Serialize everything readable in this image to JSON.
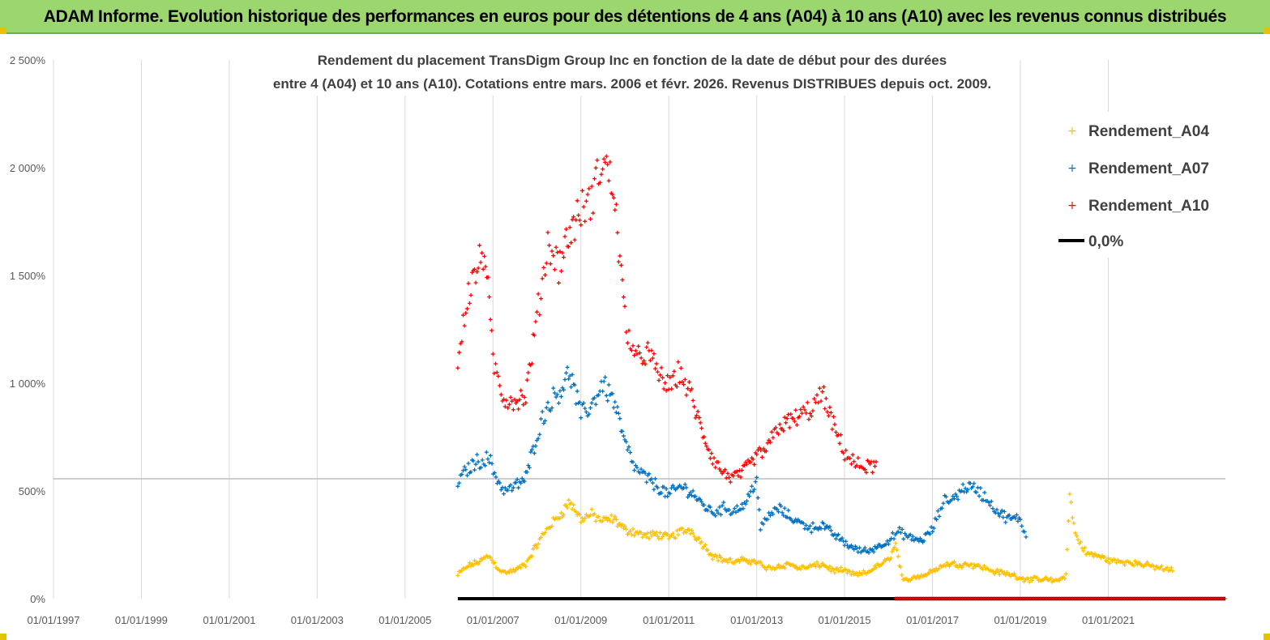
{
  "banner": {
    "title": "ADAM Informe. Evolution historique des performances en euros pour des détentions de 4 ans (A04) à 10 ans (A10) avec les revenus connus distribués"
  },
  "colors": {
    "banner_bg": "#9bd66e",
    "A04": "#ffc000",
    "A07": "#0070c0",
    "A10": "#ff0000",
    "zero_line": "#000000",
    "grid": "#d9d9d9"
  },
  "chart_data": {
    "type": "scatter",
    "title_lines": [
      "Rendement du placement TransDigm Group Inc en fonction de la date de début pour des durées",
      "entre 4 (A04) et 10 ans (A10). Cotations entre mars. 2006 et févr. 2026. Revenus DISTRIBUES depuis oct. 2009."
    ],
    "xlabel": "",
    "ylabel": "",
    "x_ticks": [
      "01/01/1997",
      "01/01/1999",
      "01/01/2001",
      "01/01/2003",
      "01/01/2005",
      "01/01/2007",
      "01/01/2009",
      "01/01/2011",
      "01/01/2013",
      "01/01/2015",
      "01/01/2017",
      "01/01/2019",
      "01/01/2021"
    ],
    "xlim": [
      "1997-01-01",
      "2023-09-01"
    ],
    "y_ticks": [
      "0%",
      "500%",
      "1 000%",
      "1 500%",
      "2 000%",
      "2 500%"
    ],
    "ylim": [
      0,
      2500
    ],
    "grid": "vertical",
    "legend_position": "top-right",
    "legend": [
      "Rendement_A04",
      "Rendement_A07",
      "Rendement_A10",
      "0,0%"
    ],
    "series": [
      {
        "name": "Rendement_A04",
        "points": [
          [
            "2006-03-15",
            110
          ],
          [
            "2006-06-01",
            150
          ],
          [
            "2006-09-01",
            170
          ],
          [
            "2006-12-01",
            200
          ],
          [
            "2007-01-15",
            160
          ],
          [
            "2007-04-01",
            120
          ],
          [
            "2007-07-01",
            130
          ],
          [
            "2007-10-01",
            160
          ],
          [
            "2008-01-01",
            250
          ],
          [
            "2008-04-01",
            330
          ],
          [
            "2008-07-01",
            380
          ],
          [
            "2008-10-01",
            450
          ],
          [
            "2009-01-01",
            370
          ],
          [
            "2009-04-01",
            390
          ],
          [
            "2009-07-01",
            360
          ],
          [
            "2009-10-01",
            370
          ],
          [
            "2010-01-01",
            320
          ],
          [
            "2010-04-01",
            310
          ],
          [
            "2010-07-01",
            290
          ],
          [
            "2010-10-01",
            300
          ],
          [
            "2011-01-01",
            280
          ],
          [
            "2011-04-01",
            310
          ],
          [
            "2011-07-01",
            320
          ],
          [
            "2011-10-01",
            260
          ],
          [
            "2012-01-01",
            200
          ],
          [
            "2012-04-01",
            180
          ],
          [
            "2012-07-01",
            170
          ],
          [
            "2012-10-01",
            180
          ],
          [
            "2013-01-01",
            170
          ],
          [
            "2013-04-01",
            140
          ],
          [
            "2013-07-01",
            150
          ],
          [
            "2013-10-01",
            160
          ],
          [
            "2014-01-01",
            140
          ],
          [
            "2014-04-01",
            150
          ],
          [
            "2014-07-01",
            160
          ],
          [
            "2014-10-01",
            130
          ],
          [
            "2015-01-01",
            130
          ],
          [
            "2015-04-01",
            110
          ],
          [
            "2015-07-01",
            120
          ],
          [
            "2015-10-01",
            150
          ],
          [
            "2016-01-01",
            180
          ],
          [
            "2016-03-01",
            250
          ],
          [
            "2016-05-01",
            80
          ],
          [
            "2016-08-01",
            100
          ],
          [
            "2016-11-01",
            110
          ],
          [
            "2017-02-01",
            140
          ],
          [
            "2017-05-01",
            160
          ],
          [
            "2017-08-01",
            160
          ],
          [
            "2017-11-01",
            160
          ],
          [
            "2018-02-01",
            150
          ],
          [
            "2018-05-01",
            130
          ],
          [
            "2018-08-01",
            120
          ],
          [
            "2018-11-01",
            110
          ],
          [
            "2019-02-01",
            90
          ],
          [
            "2019-05-01",
            90
          ],
          [
            "2019-08-01",
            90
          ],
          [
            "2019-11-01",
            80
          ],
          [
            "2020-01-15",
            110
          ],
          [
            "2020-02-15",
            480
          ],
          [
            "2020-04-01",
            300
          ],
          [
            "2020-07-01",
            210
          ],
          [
            "2020-10-01",
            200
          ],
          [
            "2021-01-01",
            180
          ],
          [
            "2021-04-01",
            170
          ],
          [
            "2021-07-01",
            170
          ],
          [
            "2021-10-01",
            160
          ],
          [
            "2022-01-01",
            150
          ],
          [
            "2022-04-01",
            140
          ],
          [
            "2022-07-01",
            130
          ]
        ]
      },
      {
        "name": "Rendement_A07",
        "points": [
          [
            "2006-03-15",
            540
          ],
          [
            "2006-06-01",
            600
          ],
          [
            "2006-09-01",
            640
          ],
          [
            "2006-12-01",
            650
          ],
          [
            "2007-01-15",
            580
          ],
          [
            "2007-04-01",
            500
          ],
          [
            "2007-07-01",
            520
          ],
          [
            "2007-10-01",
            560
          ],
          [
            "2008-01-01",
            760
          ],
          [
            "2008-04-01",
            900
          ],
          [
            "2008-07-01",
            960
          ],
          [
            "2008-10-01",
            1050
          ],
          [
            "2009-01-01",
            850
          ],
          [
            "2009-04-01",
            900
          ],
          [
            "2009-07-01",
            1000
          ],
          [
            "2009-10-01",
            920
          ],
          [
            "2010-01-01",
            720
          ],
          [
            "2010-04-01",
            600
          ],
          [
            "2010-07-01",
            560
          ],
          [
            "2010-10-01",
            520
          ],
          [
            "2011-01-01",
            480
          ],
          [
            "2011-04-01",
            520
          ],
          [
            "2011-07-01",
            500
          ],
          [
            "2011-10-01",
            440
          ],
          [
            "2012-01-01",
            400
          ],
          [
            "2012-04-01",
            420
          ],
          [
            "2012-07-01",
            410
          ],
          [
            "2012-10-01",
            440
          ],
          [
            "2013-01-01",
            560
          ],
          [
            "2013-02-01",
            320
          ],
          [
            "2013-04-01",
            380
          ],
          [
            "2013-07-01",
            420
          ],
          [
            "2013-10-01",
            380
          ],
          [
            "2014-01-01",
            350
          ],
          [
            "2014-04-01",
            330
          ],
          [
            "2014-07-01",
            340
          ],
          [
            "2014-10-01",
            300
          ],
          [
            "2015-01-01",
            260
          ],
          [
            "2015-04-01",
            230
          ],
          [
            "2015-07-01",
            220
          ],
          [
            "2015-10-01",
            240
          ],
          [
            "2016-01-01",
            270
          ],
          [
            "2016-04-01",
            310
          ],
          [
            "2016-07-01",
            280
          ],
          [
            "2016-10-01",
            270
          ],
          [
            "2017-01-01",
            320
          ],
          [
            "2017-04-01",
            450
          ],
          [
            "2017-07-01",
            470
          ],
          [
            "2017-10-01",
            520
          ],
          [
            "2018-01-01",
            510
          ],
          [
            "2018-04-01",
            460
          ],
          [
            "2018-07-01",
            400
          ],
          [
            "2018-10-01",
            370
          ],
          [
            "2019-01-01",
            370
          ],
          [
            "2019-03-01",
            260
          ]
        ]
      },
      {
        "name": "Rendement_A10",
        "points": [
          [
            "2006-03-15",
            1100
          ],
          [
            "2006-06-01",
            1400
          ],
          [
            "2006-09-01",
            1550
          ],
          [
            "2006-11-01",
            1600
          ],
          [
            "2007-01-01",
            1100
          ],
          [
            "2007-04-01",
            930
          ],
          [
            "2007-07-01",
            920
          ],
          [
            "2007-10-01",
            940
          ],
          [
            "2008-01-01",
            1300
          ],
          [
            "2008-04-01",
            1650
          ],
          [
            "2008-07-01",
            1550
          ],
          [
            "2008-10-01",
            1700
          ],
          [
            "2009-01-01",
            1800
          ],
          [
            "2009-04-01",
            1850
          ],
          [
            "2009-07-01",
            2050
          ],
          [
            "2009-10-01",
            1900
          ],
          [
            "2010-01-01",
            1300
          ],
          [
            "2010-04-01",
            1100
          ],
          [
            "2010-07-01",
            1150
          ],
          [
            "2010-10-01",
            1050
          ],
          [
            "2011-01-01",
            980
          ],
          [
            "2011-04-01",
            1050
          ],
          [
            "2011-07-01",
            950
          ],
          [
            "2011-10-01",
            780
          ],
          [
            "2012-01-01",
            650
          ],
          [
            "2012-04-01",
            580
          ],
          [
            "2012-07-01",
            560
          ],
          [
            "2012-10-01",
            600
          ],
          [
            "2013-01-01",
            660
          ],
          [
            "2013-04-01",
            700
          ],
          [
            "2013-07-01",
            800
          ],
          [
            "2013-10-01",
            820
          ],
          [
            "2014-01-01",
            850
          ],
          [
            "2014-04-01",
            880
          ],
          [
            "2014-07-01",
            950
          ],
          [
            "2014-10-01",
            800
          ],
          [
            "2015-01-01",
            680
          ],
          [
            "2015-04-01",
            620
          ],
          [
            "2015-07-01",
            610
          ],
          [
            "2015-10-01",
            620
          ]
        ]
      },
      {
        "name": "0,0%",
        "points": [
          [
            "2006-03-15",
            0
          ],
          [
            "2023-09-01",
            0
          ]
        ]
      }
    ]
  }
}
